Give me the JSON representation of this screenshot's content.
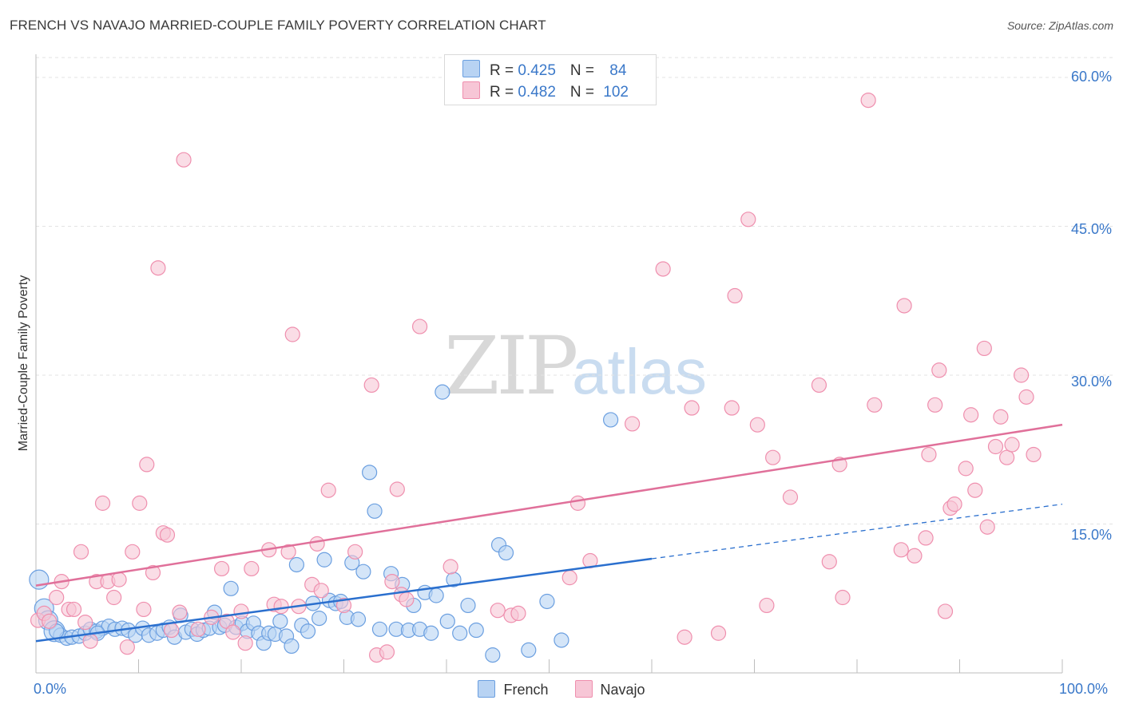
{
  "title": "FRENCH VS NAVAJO MARRIED-COUPLE FAMILY POVERTY CORRELATION CHART",
  "source": "Source: ZipAtlas.com",
  "watermark": {
    "zip": "ZIP",
    "atlas": "atlas"
  },
  "colors": {
    "french": "#6b9fe0",
    "french_fill": "#b8d3f3",
    "navajo": "#ef8fae",
    "navajo_fill": "#f7c6d6",
    "french_line": "#2a6fce",
    "navajo_line": "#e0709a",
    "grid": "#e3e3e3",
    "tick_text": "#3a78c9"
  },
  "legend": {
    "french": {
      "r_label": "R = ",
      "r_value": "0.425",
      "n_label": "N = ",
      "n_value": "84"
    },
    "navajo": {
      "r_label": "R = ",
      "r_value": "0.482",
      "n_label": "N = ",
      "n_value": "102"
    }
  },
  "chart_data": {
    "type": "scatter",
    "title": "FRENCH VS NAVAJO MARRIED-COUPLE FAMILY POVERTY CORRELATION CHART",
    "xlabel": "",
    "ylabel": "Married-Couple Family Poverty",
    "xlim": [
      0,
      100
    ],
    "ylim": [
      0,
      62
    ],
    "x_tick_labels": [
      "0.0%",
      "100.0%"
    ],
    "y_ticks": [
      15,
      30,
      45,
      60
    ],
    "y_tick_labels": [
      "15.0%",
      "30.0%",
      "45.0%",
      "60.0%"
    ],
    "grid": true,
    "legend_position": "bottom",
    "series": [
      {
        "name": "French",
        "trend": {
          "x0": 0,
          "y0": 3.2,
          "x1": 60,
          "y1": 11.5,
          "dashed_to_x": 100,
          "dashed_to_y": 17
        },
        "points": [
          [
            0.3,
            9.4
          ],
          [
            0.8,
            6.5
          ],
          [
            1.2,
            5.3
          ],
          [
            1.8,
            4.2
          ],
          [
            2.4,
            3.8
          ],
          [
            3.0,
            3.5
          ],
          [
            3.5,
            3.6
          ],
          [
            4.2,
            3.7
          ],
          [
            4.8,
            4.0
          ],
          [
            5.3,
            4.4
          ],
          [
            5.9,
            4.2
          ],
          [
            6.5,
            4.5
          ],
          [
            7.1,
            4.7
          ],
          [
            7.7,
            4.4
          ],
          [
            8.4,
            4.5
          ],
          [
            9.0,
            4.3
          ],
          [
            9.7,
            3.8
          ],
          [
            10.4,
            4.5
          ],
          [
            11.0,
            3.8
          ],
          [
            11.8,
            4.0
          ],
          [
            12.4,
            4.3
          ],
          [
            13.0,
            4.6
          ],
          [
            13.5,
            3.6
          ],
          [
            14.1,
            5.8
          ],
          [
            14.6,
            4.1
          ],
          [
            15.2,
            4.4
          ],
          [
            15.7,
            3.9
          ],
          [
            16.3,
            4.3
          ],
          [
            16.9,
            4.5
          ],
          [
            17.4,
            6.1
          ],
          [
            17.9,
            4.6
          ],
          [
            18.4,
            4.8
          ],
          [
            19.0,
            8.5
          ],
          [
            19.5,
            4.6
          ],
          [
            20.1,
            5.0
          ],
          [
            20.6,
            4.2
          ],
          [
            21.2,
            5.0
          ],
          [
            21.7,
            4.0
          ],
          [
            22.2,
            3.0
          ],
          [
            22.7,
            4.0
          ],
          [
            23.3,
            3.9
          ],
          [
            23.8,
            5.2
          ],
          [
            24.4,
            3.7
          ],
          [
            24.9,
            2.7
          ],
          [
            25.4,
            10.9
          ],
          [
            25.9,
            4.8
          ],
          [
            26.5,
            4.2
          ],
          [
            27.0,
            7.0
          ],
          [
            27.6,
            5.5
          ],
          [
            28.1,
            11.4
          ],
          [
            28.6,
            7.3
          ],
          [
            29.2,
            7.0
          ],
          [
            29.7,
            7.2
          ],
          [
            30.3,
            5.6
          ],
          [
            30.8,
            11.1
          ],
          [
            31.4,
            5.4
          ],
          [
            31.9,
            10.2
          ],
          [
            32.5,
            20.2
          ],
          [
            33.0,
            16.3
          ],
          [
            33.5,
            4.4
          ],
          [
            34.6,
            10.0
          ],
          [
            35.1,
            4.4
          ],
          [
            35.7,
            8.9
          ],
          [
            36.3,
            4.3
          ],
          [
            36.8,
            6.8
          ],
          [
            37.4,
            4.4
          ],
          [
            37.9,
            8.1
          ],
          [
            38.5,
            4.0
          ],
          [
            39.0,
            7.8
          ],
          [
            39.6,
            28.3
          ],
          [
            40.1,
            5.2
          ],
          [
            40.7,
            9.4
          ],
          [
            41.3,
            4.0
          ],
          [
            42.1,
            6.8
          ],
          [
            42.9,
            4.3
          ],
          [
            44.5,
            1.8
          ],
          [
            45.1,
            12.9
          ],
          [
            45.8,
            12.1
          ],
          [
            48.0,
            2.3
          ],
          [
            49.8,
            7.2
          ],
          [
            51.2,
            3.3
          ],
          [
            56.0,
            25.5
          ],
          [
            2.0,
            4.2
          ],
          [
            6.0,
            4.0
          ]
        ]
      },
      {
        "name": "Navajo",
        "trend": {
          "x0": 0,
          "y0": 8.8,
          "x1": 100,
          "y1": 25.0
        },
        "points": [
          [
            0.2,
            5.3
          ],
          [
            0.8,
            6.0
          ],
          [
            1.3,
            5.2
          ],
          [
            2.0,
            7.6
          ],
          [
            2.5,
            9.2
          ],
          [
            3.2,
            6.4
          ],
          [
            3.7,
            6.4
          ],
          [
            4.4,
            12.2
          ],
          [
            4.8,
            5.1
          ],
          [
            5.3,
            3.2
          ],
          [
            5.9,
            9.2
          ],
          [
            6.5,
            17.1
          ],
          [
            7.0,
            9.2
          ],
          [
            7.6,
            7.6
          ],
          [
            8.1,
            9.4
          ],
          [
            8.9,
            2.6
          ],
          [
            9.4,
            12.2
          ],
          [
            10.1,
            17.1
          ],
          [
            10.5,
            6.4
          ],
          [
            10.8,
            21.0
          ],
          [
            11.4,
            10.1
          ],
          [
            11.9,
            40.8
          ],
          [
            12.4,
            14.1
          ],
          [
            12.8,
            13.9
          ],
          [
            13.2,
            4.3
          ],
          [
            14.0,
            6.1
          ],
          [
            14.4,
            51.7
          ],
          [
            15.8,
            4.4
          ],
          [
            17.1,
            5.6
          ],
          [
            18.1,
            10.5
          ],
          [
            18.6,
            5.2
          ],
          [
            19.2,
            4.1
          ],
          [
            20.0,
            6.2
          ],
          [
            20.4,
            3.0
          ],
          [
            21.0,
            10.5
          ],
          [
            22.7,
            12.4
          ],
          [
            23.2,
            6.9
          ],
          [
            23.9,
            6.7
          ],
          [
            24.6,
            12.2
          ],
          [
            25.0,
            34.1
          ],
          [
            25.6,
            6.7
          ],
          [
            26.9,
            8.9
          ],
          [
            27.4,
            13.0
          ],
          [
            27.8,
            8.3
          ],
          [
            28.5,
            18.4
          ],
          [
            30.0,
            6.8
          ],
          [
            31.1,
            12.2
          ],
          [
            32.7,
            29.0
          ],
          [
            33.2,
            1.8
          ],
          [
            34.2,
            2.1
          ],
          [
            34.7,
            9.2
          ],
          [
            35.2,
            18.5
          ],
          [
            35.6,
            7.9
          ],
          [
            36.1,
            7.4
          ],
          [
            37.4,
            34.9
          ],
          [
            40.4,
            10.7
          ],
          [
            45.0,
            6.3
          ],
          [
            46.3,
            5.8
          ],
          [
            47.0,
            6.0
          ],
          [
            52.0,
            9.6
          ],
          [
            52.8,
            17.1
          ],
          [
            54.0,
            11.3
          ],
          [
            58.1,
            25.1
          ],
          [
            61.1,
            40.7
          ],
          [
            63.2,
            3.6
          ],
          [
            63.9,
            26.7
          ],
          [
            66.5,
            4.0
          ],
          [
            67.8,
            26.7
          ],
          [
            68.1,
            38.0
          ],
          [
            69.4,
            45.7
          ],
          [
            70.3,
            25.0
          ],
          [
            71.2,
            6.8
          ],
          [
            71.8,
            21.7
          ],
          [
            73.5,
            17.7
          ],
          [
            76.3,
            29.0
          ],
          [
            77.3,
            11.2
          ],
          [
            78.3,
            21.0
          ],
          [
            78.6,
            7.6
          ],
          [
            81.1,
            57.7
          ],
          [
            81.7,
            27.0
          ],
          [
            84.3,
            12.4
          ],
          [
            84.6,
            37.0
          ],
          [
            85.6,
            11.8
          ],
          [
            86.7,
            13.6
          ],
          [
            87.0,
            22.0
          ],
          [
            87.6,
            27.0
          ],
          [
            88.0,
            30.5
          ],
          [
            88.6,
            6.2
          ],
          [
            89.1,
            16.6
          ],
          [
            89.5,
            17.0
          ],
          [
            90.6,
            20.6
          ],
          [
            91.1,
            26.0
          ],
          [
            91.5,
            18.4
          ],
          [
            92.4,
            32.7
          ],
          [
            92.7,
            14.7
          ],
          [
            93.5,
            22.8
          ],
          [
            94.0,
            25.8
          ],
          [
            94.6,
            21.7
          ],
          [
            95.1,
            23.0
          ],
          [
            96.0,
            30.0
          ],
          [
            96.5,
            27.8
          ],
          [
            97.2,
            22.0
          ]
        ]
      }
    ]
  },
  "bottom_legend": {
    "french": "French",
    "navajo": "Navajo"
  }
}
